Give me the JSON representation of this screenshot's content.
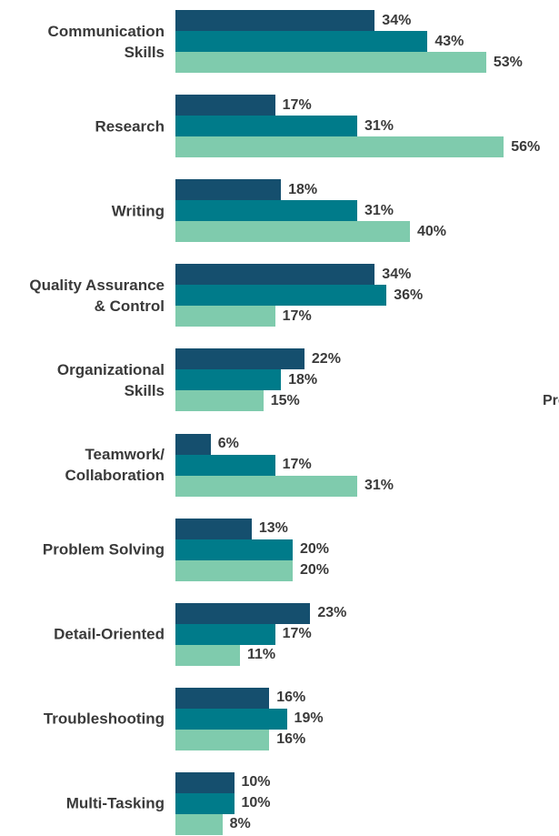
{
  "chart_data": {
    "type": "bar",
    "orientation": "horizontal",
    "categories": [
      "Communication\nSkills",
      "Research",
      "Writing",
      "Quality Assurance\n& Control",
      "Organizational\nSkills",
      "Teamwork/\nCollaboration",
      "Problem Solving",
      "Detail-Oriented",
      "Troubleshooting",
      "Multi-Tasking"
    ],
    "series": [
      {
        "color": "#154f6e",
        "values": [
          34,
          17,
          18,
          34,
          22,
          6,
          13,
          23,
          16,
          10
        ],
        "value_labels": [
          "34%",
          "17%",
          "18%",
          "34%",
          "22%",
          "6%",
          "13%",
          "23%",
          "16%",
          "10%"
        ]
      },
      {
        "color": "#007b8a",
        "values": [
          43,
          31,
          31,
          36,
          18,
          17,
          20,
          17,
          19,
          10
        ],
        "value_labels": [
          "43%",
          "31%",
          "31%",
          "36%",
          "18%",
          "17%",
          "20%",
          "17%",
          "19%",
          "10%"
        ]
      },
      {
        "color": "#7fcbad",
        "values": [
          53,
          56,
          40,
          17,
          15,
          31,
          20,
          11,
          16,
          8
        ],
        "value_labels": [
          "53%",
          "56%",
          "40%",
          "17%",
          "15%",
          "31%",
          "20%",
          "11%",
          "16%",
          "8%"
        ]
      }
    ],
    "annotation": "Pro"
  }
}
